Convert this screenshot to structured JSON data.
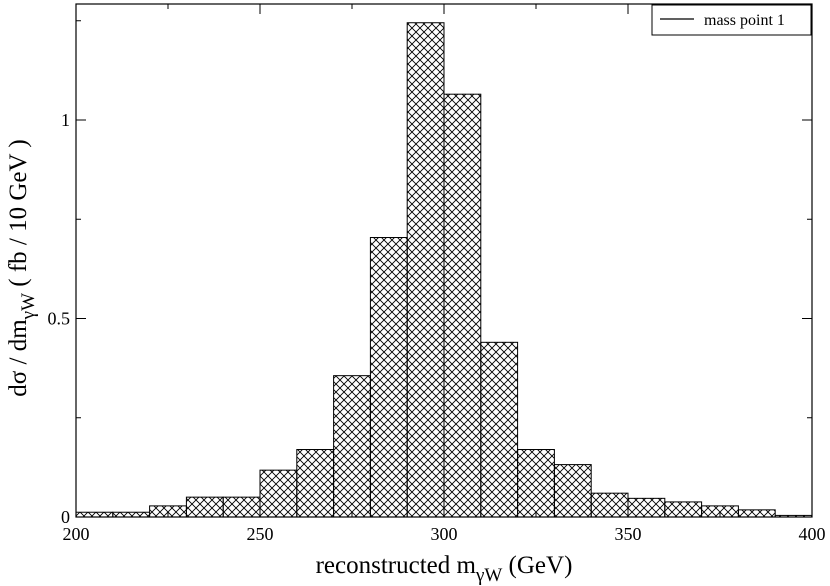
{
  "chart_data": {
    "type": "bar",
    "subtype": "histogram",
    "bin_width": 10,
    "bin_edges": [
      200,
      210,
      220,
      230,
      240,
      250,
      260,
      270,
      280,
      290,
      300,
      310,
      320,
      330,
      340,
      350,
      360,
      370,
      380,
      390,
      400
    ],
    "values": [
      0.012,
      0.012,
      0.028,
      0.05,
      0.05,
      0.118,
      0.17,
      0.356,
      0.704,
      1.245,
      1.065,
      0.44,
      0.17,
      0.132,
      0.06,
      0.047,
      0.038,
      0.028,
      0.018,
      0.004
    ],
    "series": [
      {
        "name": "mass point 1"
      }
    ],
    "fill_pattern": "crosshatch",
    "xlim": [
      200,
      400
    ],
    "ylim": [
      0,
      1.25
    ],
    "x_ticks": [
      "200",
      "250",
      "300",
      "350",
      "400"
    ],
    "y_ticks": [
      "0",
      "0.5",
      "1"
    ],
    "xlabel": "reconstructed m",
    "xlabel_sub": "γW",
    "xlabel_unit": " (GeV)",
    "ylabel": "dσ / dm",
    "ylabel_sub": "γW",
    "ylabel_unit": "  ( fb / 10 GeV )",
    "legend": {
      "position": "top-right",
      "label": "mass point 1"
    }
  }
}
